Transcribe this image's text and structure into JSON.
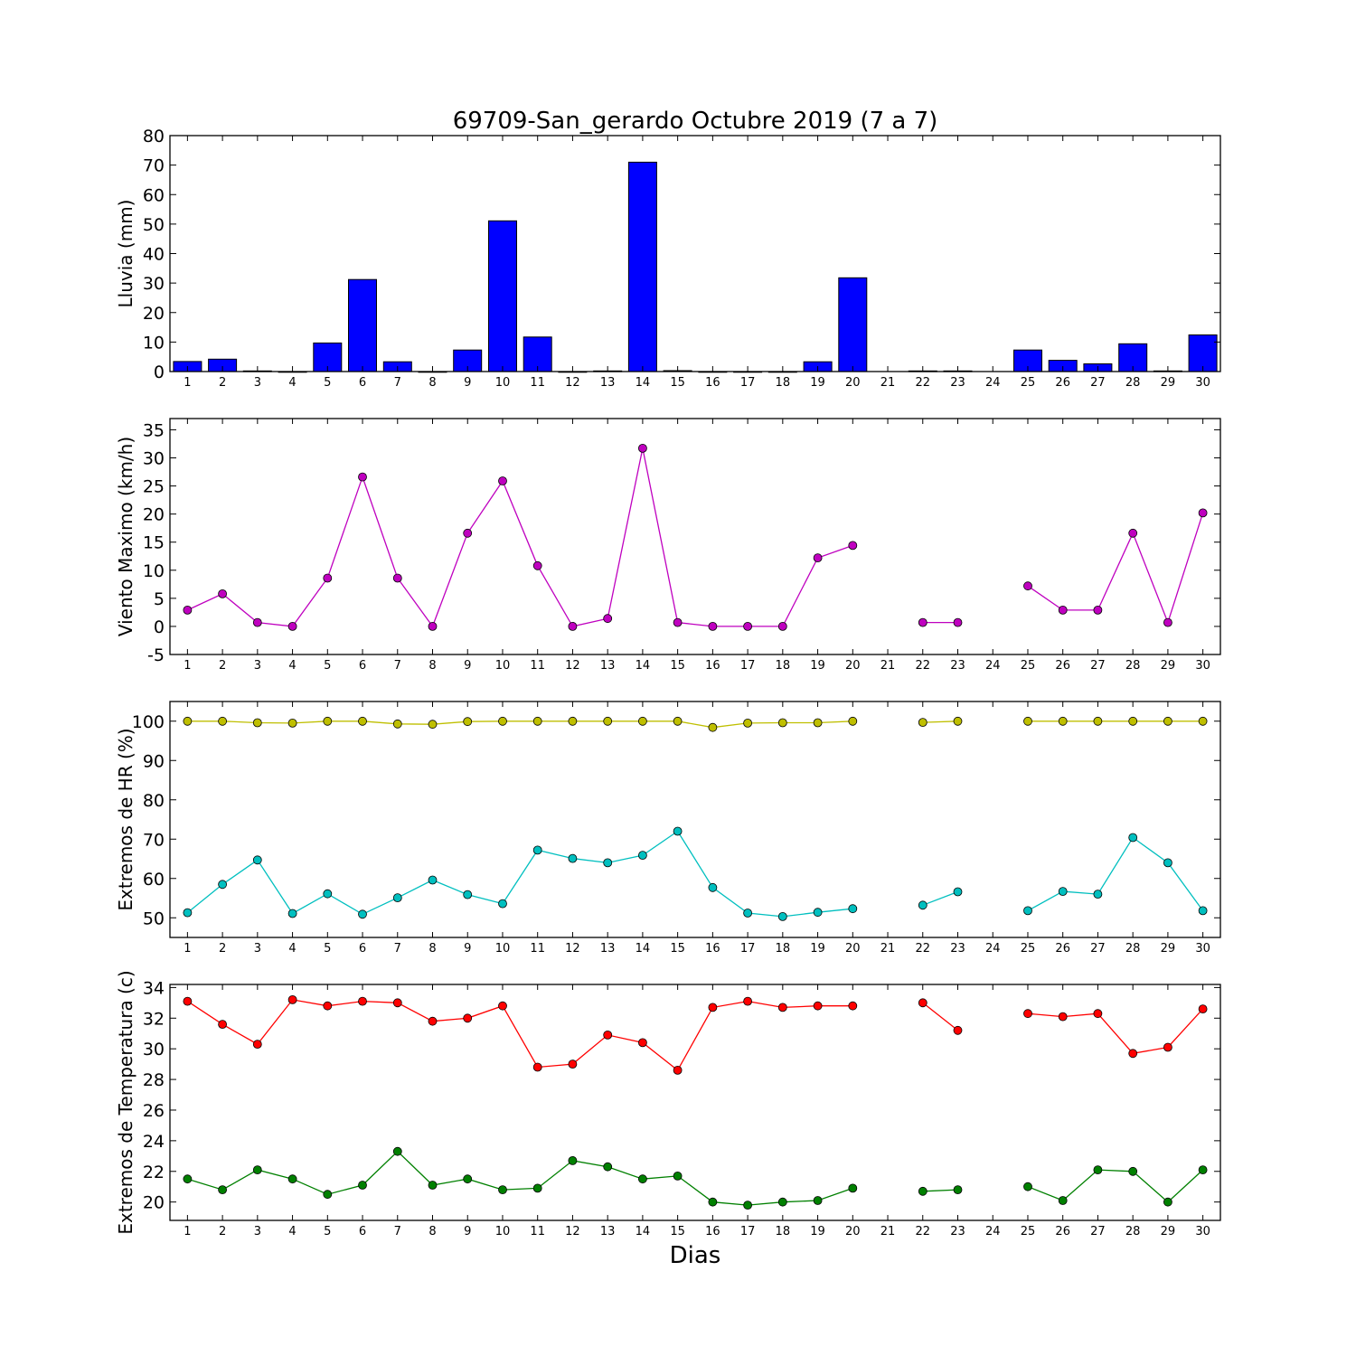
{
  "title": "69709-San_gerardo Octubre 2019  (7 a 7)",
  "xlabel": "Dias",
  "chart_data": [
    {
      "type": "bar",
      "ylabel": "Lluvia (mm)",
      "ylim": [
        0,
        80
      ],
      "yticks": [
        0,
        10,
        20,
        30,
        40,
        50,
        60,
        70,
        80
      ],
      "categories": [
        1,
        2,
        3,
        4,
        5,
        6,
        7,
        8,
        9,
        10,
        11,
        12,
        13,
        14,
        15,
        16,
        17,
        18,
        19,
        20,
        21,
        22,
        23,
        24,
        25,
        26,
        27,
        28,
        29,
        30
      ],
      "series": [
        {
          "color": "#0000ff",
          "values": [
            3.4,
            4.2,
            0.2,
            0,
            9.7,
            31.2,
            3.3,
            0,
            7.3,
            51.1,
            11.7,
            0,
            0.2,
            71.0,
            0.3,
            0,
            0,
            0,
            3.3,
            31.8,
            null,
            0.2,
            0.2,
            null,
            7.3,
            3.8,
            2.6,
            9.4,
            0.2,
            12.4
          ]
        }
      ]
    },
    {
      "type": "line",
      "ylabel": "Viento Maximo (km/h)",
      "ylim": [
        -5,
        37
      ],
      "yticks": [
        -5,
        0,
        5,
        10,
        15,
        20,
        25,
        30,
        35
      ],
      "x": [
        1,
        2,
        3,
        4,
        5,
        6,
        7,
        8,
        9,
        10,
        11,
        12,
        13,
        14,
        15,
        16,
        17,
        18,
        19,
        20,
        21,
        22,
        23,
        24,
        25,
        26,
        27,
        28,
        29,
        30
      ],
      "series": [
        {
          "color": "#bf00bf",
          "values": [
            2.9,
            5.8,
            0.7,
            0,
            8.6,
            26.6,
            8.6,
            0,
            16.6,
            25.9,
            10.8,
            0,
            1.4,
            31.7,
            0.7,
            0,
            0,
            0,
            12.2,
            14.4,
            null,
            0.7,
            0.7,
            null,
            7.2,
            2.9,
            2.9,
            16.6,
            0.7,
            20.2
          ]
        }
      ]
    },
    {
      "type": "line",
      "ylabel": "Extremos de HR (%)",
      "ylim": [
        45,
        105
      ],
      "yticks": [
        50,
        60,
        70,
        80,
        90,
        100
      ],
      "x": [
        1,
        2,
        3,
        4,
        5,
        6,
        7,
        8,
        9,
        10,
        11,
        12,
        13,
        14,
        15,
        16,
        17,
        18,
        19,
        20,
        21,
        22,
        23,
        24,
        25,
        26,
        27,
        28,
        29,
        30
      ],
      "series": [
        {
          "color": "#bfbf00",
          "values": [
            100,
            100,
            99.6,
            99.5,
            100,
            100,
            99.3,
            99.2,
            99.9,
            100,
            100,
            100,
            100,
            100,
            100,
            98.4,
            99.5,
            99.6,
            99.6,
            100,
            null,
            99.7,
            100,
            null,
            100,
            100,
            100,
            100,
            100,
            100
          ]
        },
        {
          "color": "#00bfbf",
          "values": [
            51.3,
            58.5,
            64.7,
            51.1,
            56.1,
            50.9,
            55.1,
            59.6,
            55.9,
            53.6,
            67.2,
            65.1,
            64.0,
            65.9,
            72.0,
            57.7,
            51.2,
            50.3,
            51.4,
            52.3,
            null,
            53.2,
            56.6,
            null,
            51.8,
            56.7,
            56.0,
            70.4,
            64.0,
            51.8
          ]
        }
      ]
    },
    {
      "type": "line",
      "ylabel": "Extremos de Temperatura (c)",
      "ylim": [
        18.8,
        34.2
      ],
      "yticks": [
        20,
        22,
        24,
        26,
        28,
        30,
        32,
        34
      ],
      "x": [
        1,
        2,
        3,
        4,
        5,
        6,
        7,
        8,
        9,
        10,
        11,
        12,
        13,
        14,
        15,
        16,
        17,
        18,
        19,
        20,
        21,
        22,
        23,
        24,
        25,
        26,
        27,
        28,
        29,
        30
      ],
      "series": [
        {
          "color": "#ff0000",
          "values": [
            33.1,
            31.6,
            30.3,
            33.2,
            32.8,
            33.1,
            33.0,
            31.8,
            32.0,
            32.8,
            28.8,
            29.0,
            30.9,
            30.4,
            28.6,
            32.7,
            33.1,
            32.7,
            32.8,
            32.8,
            null,
            33.0,
            31.2,
            null,
            32.3,
            32.1,
            32.3,
            29.7,
            30.1,
            32.6
          ]
        },
        {
          "color": "#008000",
          "values": [
            21.5,
            20.8,
            22.1,
            21.5,
            20.5,
            21.1,
            23.3,
            21.1,
            21.5,
            20.8,
            20.9,
            22.7,
            22.3,
            21.5,
            21.7,
            20.0,
            19.8,
            20.0,
            20.1,
            20.9,
            null,
            20.7,
            20.8,
            null,
            21.0,
            20.1,
            22.1,
            22.0,
            20.0,
            22.1
          ]
        }
      ]
    }
  ]
}
